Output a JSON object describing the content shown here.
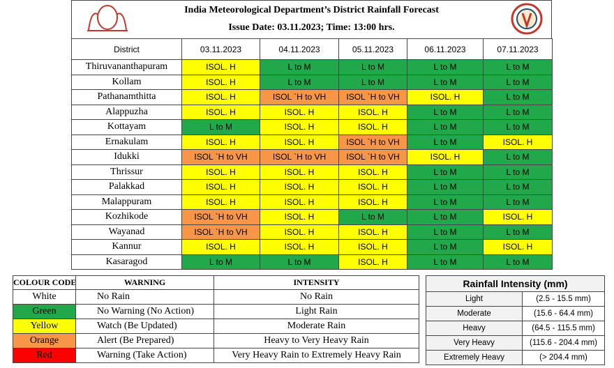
{
  "header": {
    "title": "India Meteorological Department’s District Rainfall Forecast",
    "subtitle": "Issue Date: 03.11.2023; Time: 13:00 hrs."
  },
  "forecast": {
    "columns": [
      "District",
      "03.11.2023",
      "04.11.2023",
      "05.11.2023",
      "06.11.2023",
      "07.11.2023"
    ],
    "rows": [
      {
        "district": "Thiruvananthapuram",
        "cells": [
          {
            "text": "ISOL. H",
            "color": "#ffff00"
          },
          {
            "text": "L to M",
            "color": "#21a84a"
          },
          {
            "text": "L to M",
            "color": "#21a84a"
          },
          {
            "text": "L to M",
            "color": "#21a84a"
          },
          {
            "text": "L to M",
            "color": "#21a84a"
          }
        ]
      },
      {
        "district": "Kollam",
        "cells": [
          {
            "text": "ISOL. H",
            "color": "#ffff00"
          },
          {
            "text": "L to M",
            "color": "#21a84a"
          },
          {
            "text": "L to M",
            "color": "#21a84a"
          },
          {
            "text": "L to M",
            "color": "#21a84a"
          },
          {
            "text": "L to M",
            "color": "#21a84a"
          }
        ]
      },
      {
        "district": "Pathanamthitta",
        "cells": [
          {
            "text": "ISOL. H",
            "color": "#ffff00"
          },
          {
            "text": "ISOL `H to VH",
            "color": "#f79646"
          },
          {
            "text": "ISOL `H to VH",
            "color": "#f79646"
          },
          {
            "text": "ISOL. H",
            "color": "#ffff00"
          },
          {
            "text": "L to M",
            "color": "#21a84a"
          }
        ]
      },
      {
        "district": "Alappuzha",
        "cells": [
          {
            "text": "ISOL. H",
            "color": "#ffff00"
          },
          {
            "text": "ISOL. H",
            "color": "#ffff00"
          },
          {
            "text": "ISOL. H",
            "color": "#ffff00"
          },
          {
            "text": "L to M",
            "color": "#21a84a"
          },
          {
            "text": "L to M",
            "color": "#21a84a"
          }
        ]
      },
      {
        "district": "Kottayam",
        "cells": [
          {
            "text": "L to M",
            "color": "#21a84a"
          },
          {
            "text": "ISOL. H",
            "color": "#ffff00"
          },
          {
            "text": "ISOL. H",
            "color": "#ffff00"
          },
          {
            "text": "L to M",
            "color": "#21a84a"
          },
          {
            "text": "L to M",
            "color": "#21a84a"
          }
        ]
      },
      {
        "district": "Ernakulam",
        "cells": [
          {
            "text": "ISOL. H",
            "color": "#ffff00"
          },
          {
            "text": "ISOL. H",
            "color": "#ffff00"
          },
          {
            "text": "ISOL `H to VH",
            "color": "#f79646"
          },
          {
            "text": "L to M",
            "color": "#21a84a"
          },
          {
            "text": "ISOL. H",
            "color": "#ffff00"
          }
        ]
      },
      {
        "district": "Idukki",
        "cells": [
          {
            "text": "ISOL `H to VH",
            "color": "#f79646"
          },
          {
            "text": "ISOL `H to VH",
            "color": "#f79646"
          },
          {
            "text": "ISOL `H to VH",
            "color": "#f79646"
          },
          {
            "text": "ISOL. H",
            "color": "#ffff00"
          },
          {
            "text": "L to M",
            "color": "#21a84a"
          }
        ]
      },
      {
        "district": "Thrissur",
        "cells": [
          {
            "text": "ISOL. H",
            "color": "#ffff00"
          },
          {
            "text": "ISOL. H",
            "color": "#ffff00"
          },
          {
            "text": "ISOL. H",
            "color": "#ffff00"
          },
          {
            "text": "L to M",
            "color": "#21a84a"
          },
          {
            "text": "L to M",
            "color": "#21a84a"
          }
        ]
      },
      {
        "district": "Palakkad",
        "cells": [
          {
            "text": "ISOL. H",
            "color": "#ffff00"
          },
          {
            "text": "ISOL. H",
            "color": "#ffff00"
          },
          {
            "text": "ISOL. H",
            "color": "#ffff00"
          },
          {
            "text": "L to M",
            "color": "#21a84a"
          },
          {
            "text": "L to M",
            "color": "#21a84a"
          }
        ]
      },
      {
        "district": "Malappuram",
        "cells": [
          {
            "text": "ISOL. H",
            "color": "#ffff00"
          },
          {
            "text": "ISOL. H",
            "color": "#ffff00"
          },
          {
            "text": "ISOL. H",
            "color": "#ffff00"
          },
          {
            "text": "L to M",
            "color": "#21a84a"
          },
          {
            "text": "L to M",
            "color": "#21a84a"
          }
        ]
      },
      {
        "district": "Kozhikode",
        "cells": [
          {
            "text": "ISOL `H to VH",
            "color": "#f79646"
          },
          {
            "text": "ISOL. H",
            "color": "#ffff00"
          },
          {
            "text": "L to M",
            "color": "#21a84a"
          },
          {
            "text": "L to M",
            "color": "#21a84a"
          },
          {
            "text": "ISOL. H",
            "color": "#ffff00"
          }
        ]
      },
      {
        "district": "Wayanad",
        "cells": [
          {
            "text": "ISOL `H to VH",
            "color": "#f79646"
          },
          {
            "text": "ISOL. H",
            "color": "#ffff00"
          },
          {
            "text": "ISOL. H",
            "color": "#ffff00"
          },
          {
            "text": "L to M",
            "color": "#21a84a"
          },
          {
            "text": "L to M",
            "color": "#21a84a"
          }
        ]
      },
      {
        "district": "Kannur",
        "cells": [
          {
            "text": "ISOL. H",
            "color": "#ffff00"
          },
          {
            "text": "ISOL. H",
            "color": "#ffff00"
          },
          {
            "text": "ISOL. H",
            "color": "#ffff00"
          },
          {
            "text": "L to M",
            "color": "#21a84a"
          },
          {
            "text": "ISOL. H",
            "color": "#ffff00"
          }
        ]
      },
      {
        "district": "Kasaragod",
        "cells": [
          {
            "text": "L to M",
            "color": "#21a84a"
          },
          {
            "text": "L to M",
            "color": "#21a84a"
          },
          {
            "text": "ISOL. H",
            "color": "#ffff00"
          },
          {
            "text": "L to M",
            "color": "#21a84a"
          },
          {
            "text": "L to M",
            "color": "#21a84a"
          }
        ]
      }
    ]
  },
  "legend": {
    "columns": [
      "COLOUR CODE",
      "WARNING",
      "INTENSITY"
    ],
    "rows": [
      {
        "code": "White",
        "color": "#ffffff",
        "warning": "No Rain",
        "intensity": "No Rain"
      },
      {
        "code": "Green",
        "color": "#21a84a",
        "warning": "No Warning (No Action)",
        "intensity": "Light Rain"
      },
      {
        "code": "Yellow",
        "color": "#ffff00",
        "warning": "Watch (Be Updated)",
        "intensity": "Moderate Rain"
      },
      {
        "code": "Orange",
        "color": "#f79646",
        "warning": "Alert (Be Prepared)",
        "intensity": "Heavy to Very Heavy Rain"
      },
      {
        "code": "Red",
        "color": "#ff0000",
        "warning": "Warning (Take Action)",
        "intensity": "Very Heavy Rain to Extremely Heavy Rain"
      }
    ]
  },
  "intensity": {
    "title": "Rainfall Intensity (mm)",
    "rows": [
      {
        "label": "Light",
        "range": "(2.5 - 15.5 mm)"
      },
      {
        "label": "Moderate",
        "range": "(15.6 - 64.4 mm)"
      },
      {
        "label": "Heavy",
        "range": "(64.5 - 115.5 mm)"
      },
      {
        "label": "Very Heavy",
        "range": "(115.6 - 204.4 mm)"
      },
      {
        "label": "Extremely Heavy",
        "range": "(> 204.4 mm)"
      }
    ]
  }
}
